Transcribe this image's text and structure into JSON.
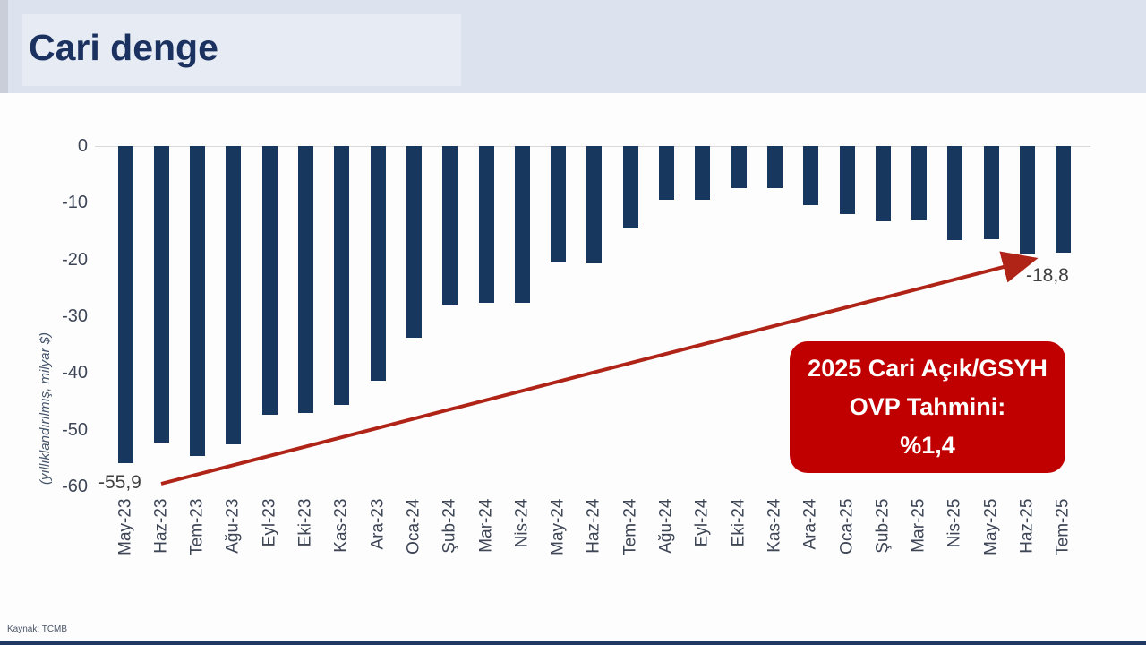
{
  "header": {
    "title": "Cari denge"
  },
  "source": "Kaynak: TCMB",
  "annotation_box": {
    "lines": [
      "2025 Cari Açık/GSYH",
      "OVP Tahmini:",
      "%1,4"
    ]
  },
  "labels": {
    "first_value": "-55,9",
    "last_value": "-18,8"
  },
  "colors": {
    "bar_navy": "#17375e",
    "title_navy": "#1b3260",
    "header_bg": "#dde3ee",
    "accent_red": "#c00000",
    "arrow_red": "#b02418",
    "axis_text": "#3e4656"
  },
  "chart_data": {
    "type": "bar",
    "title": "Cari denge",
    "ylabel": "(yıllıklandırılmış, milyar $)",
    "xlabel": "",
    "ylim": [
      -60,
      0
    ],
    "yticks": [
      0,
      -10,
      -20,
      -30,
      -40,
      -50,
      -60
    ],
    "grid": false,
    "legend": "none",
    "categories": [
      "May-23",
      "Haz-23",
      "Tem-23",
      "Ağu-23",
      "Eyl-23",
      "Eki-23",
      "Kas-23",
      "Ara-23",
      "Oca-24",
      "Şub-24",
      "Mar-24",
      "Nis-24",
      "May-24",
      "Haz-24",
      "Tem-24",
      "Ağu-24",
      "Eyl-24",
      "Eki-24",
      "Kas-24",
      "Ara-24",
      "Oca-25",
      "Şub-25",
      "Mar-25",
      "Nis-25",
      "May-25",
      "Haz-25",
      "Tem-25"
    ],
    "values": [
      -55.9,
      -52.3,
      -54.7,
      -52.6,
      -47.4,
      -47.1,
      -45.6,
      -41.4,
      -33.8,
      -28.0,
      -27.6,
      -27.6,
      -20.4,
      -20.7,
      -14.5,
      -9.5,
      -9.5,
      -7.4,
      -7.4,
      -10.5,
      -12.0,
      -13.3,
      -13.1,
      -16.6,
      -16.5,
      -19.0,
      -18.8
    ],
    "data_labels": [
      {
        "category": "May-23",
        "text": "-55,9"
      },
      {
        "category": "Tem-25",
        "text": "-18,8"
      }
    ],
    "annotations": [
      {
        "type": "arrow",
        "color": "#b02418",
        "from_category": "May-23",
        "to_category": "Haz-25"
      },
      {
        "type": "text_box",
        "color": "#c00000",
        "text": "2025 Cari Açık/GSYH OVP Tahmini: %1,4"
      }
    ]
  }
}
